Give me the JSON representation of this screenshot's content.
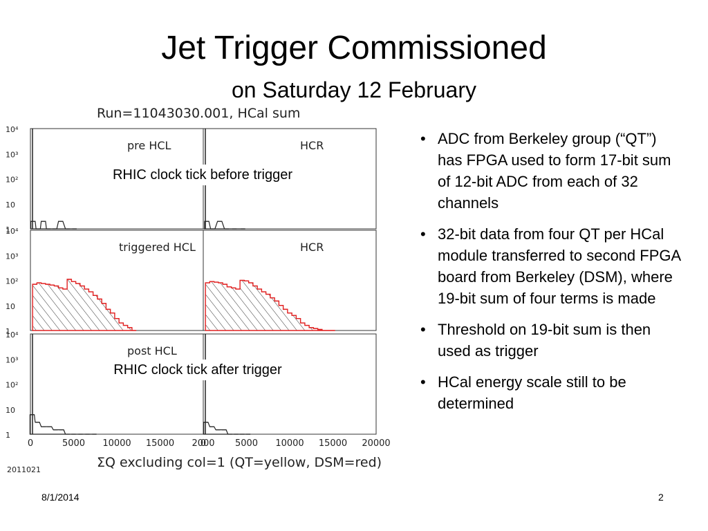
{
  "slide": {
    "title": "Jet Trigger Commissioned",
    "subtitle": "on Saturday 12 February",
    "bullets": [
      "ADC from Berkeley group (“QT”) has FPGA used to form 17-bit sum of 12-bit ADC from each of 32 channels",
      "32-bit data from four QT per HCal module transferred to second FPGA board from Berkeley (DSM), where 19-bit sum of four terms is made",
      "Threshold on 19-bit sum is then used as trigger",
      "HCal energy scale still to be determined"
    ],
    "footer_date": "8/1/2014",
    "page_number": "2"
  },
  "callouts": {
    "top": "RHIC clock tick before trigger",
    "bottom": "RHIC clock tick after trigger"
  },
  "colors": {
    "qt": "#222222",
    "dsm": "#e02020",
    "frame": "#333333",
    "hatch": "#333333"
  },
  "chart_data": {
    "type": "histogram-grid",
    "title": "Run=11043030.001, HCal sum",
    "xlabel": "ΣQ excluding col=1 (QT=yellow, DSM=red)",
    "footer_tag": "2011021",
    "y_scale": "log",
    "ylim": [
      1,
      10000
    ],
    "xlim": [
      0,
      20000
    ],
    "y_ticks": [
      "10⁴",
      "10³",
      "10²",
      "10",
      "1"
    ],
    "x_ticks_left": [
      "0",
      "5000",
      "10000",
      "15000",
      "2000"
    ],
    "x_ticks_right": [
      "0",
      "5000",
      "10000",
      "15000",
      "20000"
    ],
    "panels": [
      {
        "label": "pre HCL",
        "row": 0,
        "col": 0,
        "x": [
          300,
          900,
          1500,
          2100,
          2800,
          3500,
          4300,
          5100
        ],
        "y": [
          2,
          1,
          2,
          1,
          1,
          2,
          1,
          1
        ],
        "spike_count": 10000
      },
      {
        "label": "HCR",
        "row": 0,
        "col": 1,
        "x": [
          400,
          1100,
          1900,
          2700,
          3600,
          4600
        ],
        "y": [
          2,
          1,
          2,
          1,
          1,
          1
        ],
        "spike_count": 10000
      },
      {
        "label": "triggered HCL",
        "row": 1,
        "col": 0,
        "x": [
          500,
          1000,
          1500,
          2000,
          2500,
          3000,
          3500,
          4000,
          4500,
          5000,
          5500,
          6000,
          6500,
          7000,
          7500,
          8000,
          8500,
          9000,
          9500,
          10000,
          10500,
          11000,
          11500,
          12000
        ],
        "y": [
          70,
          80,
          75,
          70,
          65,
          60,
          50,
          45,
          110,
          90,
          75,
          60,
          45,
          35,
          25,
          18,
          12,
          7,
          5,
          3,
          2,
          1.6,
          1.3,
          1
        ]
      },
      {
        "label": "HCR",
        "row": 1,
        "col": 1,
        "x": [
          500,
          1000,
          1500,
          2000,
          2500,
          3000,
          3500,
          4000,
          4500,
          5000,
          5500,
          6000,
          6500,
          7000,
          7500,
          8000,
          8500,
          9000,
          9500,
          10000,
          10500,
          11000,
          11500,
          12000,
          12500,
          13000,
          13500,
          14000,
          14500,
          15000
        ],
        "y": [
          80,
          90,
          85,
          80,
          70,
          55,
          50,
          45,
          100,
          95,
          80,
          60,
          45,
          35,
          28,
          20,
          15,
          10,
          7,
          5,
          4,
          3,
          2,
          1.6,
          1.3,
          1.2,
          1.1,
          1,
          1,
          1
        ]
      },
      {
        "label": "post HCL",
        "row": 2,
        "col": 0,
        "x": [
          200,
          800,
          1500,
          2200,
          2900,
          3600,
          4300,
          5000,
          5800,
          6600,
          7400
        ],
        "y": [
          6,
          3,
          2,
          2,
          1.5,
          1.5,
          1,
          1,
          1,
          1,
          1
        ],
        "spike_count": 10000
      },
      {
        "label": "",
        "row": 2,
        "col": 1,
        "x": [
          300,
          1000,
          1700,
          2400,
          3100,
          3800,
          4500,
          5200
        ],
        "y": [
          3,
          2,
          1.5,
          1.5,
          1,
          1,
          1,
          1
        ],
        "spike_count": 10000
      }
    ]
  }
}
